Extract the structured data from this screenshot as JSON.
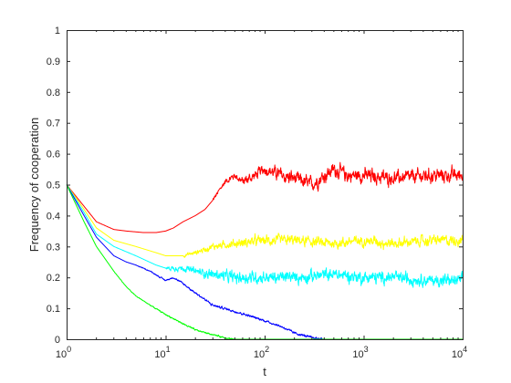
{
  "chart_data": {
    "type": "line",
    "title": "",
    "xlabel": "t",
    "ylabel": "Frequency of cooperation",
    "xscale": "log",
    "xlim": [
      1,
      10000
    ],
    "ylim": [
      0,
      1
    ],
    "grid": false,
    "legend": "none",
    "x_ticks": [
      {
        "base": "10",
        "exp": "0"
      },
      {
        "base": "10",
        "exp": "1"
      },
      {
        "base": "10",
        "exp": "2"
      },
      {
        "base": "10",
        "exp": "3"
      },
      {
        "base": "10",
        "exp": "4"
      }
    ],
    "y_ticks": [
      "0",
      "0.1",
      "0.2",
      "0.3",
      "0.4",
      "0.5",
      "0.6",
      "0.7",
      "0.8",
      "0.9",
      "1"
    ],
    "y_tick_values": [
      0,
      0.1,
      0.2,
      0.3,
      0.4,
      0.5,
      0.6,
      0.7,
      0.8,
      0.9,
      1
    ],
    "series": [
      {
        "color": "#ff0000",
        "noise": 0.035,
        "noise_start": 30,
        "x": [
          1,
          1.5,
          2,
          3,
          4,
          6,
          8,
          10,
          12,
          15,
          20,
          25,
          30,
          40,
          50,
          60,
          80,
          100,
          150,
          200,
          300,
          500,
          700,
          1000,
          2000,
          5000,
          10000
        ],
        "y": [
          0.5,
          0.43,
          0.38,
          0.355,
          0.35,
          0.345,
          0.345,
          0.35,
          0.36,
          0.38,
          0.4,
          0.42,
          0.45,
          0.51,
          0.53,
          0.51,
          0.53,
          0.55,
          0.53,
          0.52,
          0.5,
          0.55,
          0.53,
          0.53,
          0.52,
          0.53,
          0.53
        ]
      },
      {
        "color": "#ffff00",
        "noise": 0.025,
        "noise_start": 15,
        "x": [
          1,
          1.5,
          2,
          3,
          5,
          8,
          10,
          15,
          20,
          30,
          50,
          100,
          200,
          500,
          1000,
          2000,
          5000,
          10000
        ],
        "y": [
          0.5,
          0.42,
          0.36,
          0.32,
          0.3,
          0.28,
          0.27,
          0.27,
          0.28,
          0.3,
          0.31,
          0.32,
          0.32,
          0.31,
          0.32,
          0.31,
          0.32,
          0.32
        ]
      },
      {
        "color": "#00ffff",
        "noise": 0.03,
        "noise_start": 10,
        "x": [
          1,
          1.5,
          2,
          3,
          5,
          8,
          10,
          15,
          20,
          30,
          50,
          100,
          200,
          500,
          1000,
          2000,
          5000,
          10000
        ],
        "y": [
          0.5,
          0.41,
          0.34,
          0.3,
          0.27,
          0.24,
          0.23,
          0.23,
          0.22,
          0.21,
          0.2,
          0.2,
          0.2,
          0.21,
          0.2,
          0.2,
          0.19,
          0.19
        ]
      },
      {
        "color": "#0000ff",
        "noise": 0.006,
        "noise_start": 5,
        "x": [
          1,
          1.5,
          2,
          3,
          4,
          5,
          7,
          10,
          12,
          15,
          20,
          30,
          50,
          80,
          100,
          150,
          200,
          300,
          400,
          500,
          1000,
          10000
        ],
        "y": [
          0.5,
          0.4,
          0.33,
          0.27,
          0.25,
          0.24,
          0.22,
          0.19,
          0.2,
          0.18,
          0.15,
          0.11,
          0.09,
          0.07,
          0.06,
          0.04,
          0.02,
          0.005,
          0,
          0,
          0,
          0
        ]
      },
      {
        "color": "#00ff00",
        "noise": 0.004,
        "noise_start": 3,
        "x": [
          1,
          1.5,
          2,
          3,
          4,
          5,
          7,
          10,
          15,
          20,
          30,
          40,
          50,
          60,
          100,
          10000
        ],
        "y": [
          0.5,
          0.38,
          0.3,
          0.22,
          0.17,
          0.14,
          0.11,
          0.08,
          0.05,
          0.03,
          0.015,
          0.005,
          0,
          0,
          0,
          0
        ]
      }
    ]
  }
}
